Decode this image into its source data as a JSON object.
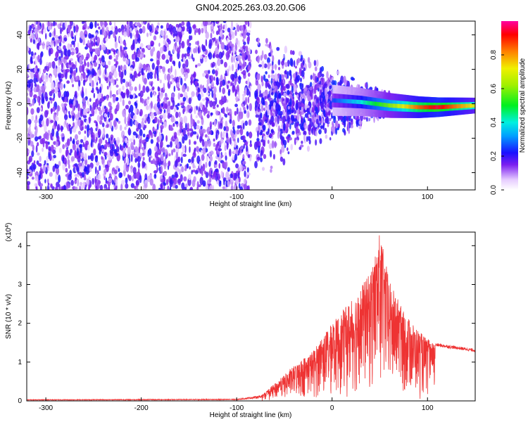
{
  "chart_data": [
    {
      "type": "heatmap",
      "title": "GN04.2025.263.03.20.G06",
      "xlabel": "Height of straight line (km)",
      "ylabel": "Frequency (Hz)",
      "xlim": [
        -320,
        150
      ],
      "ylim": [
        -50,
        48
      ],
      "xticks": [
        -300,
        -200,
        -100,
        0,
        100
      ],
      "yticks": [
        -40,
        -20,
        0,
        20,
        40
      ],
      "colorbar": {
        "label": "Normalized spectral amplitude",
        "range": [
          0.0,
          1.0
        ],
        "ticks": [
          0.0,
          0.2,
          0.4,
          0.6,
          0.8
        ]
      },
      "ridge": {
        "description_points": [
          {
            "x": 0,
            "freq": 2,
            "amp": 0.25
          },
          {
            "x": 30,
            "freq": 1,
            "amp": 0.4
          },
          {
            "x": 60,
            "freq": -1,
            "amp": 0.6
          },
          {
            "x": 90,
            "freq": -2,
            "amp": 0.85
          },
          {
            "x": 110,
            "freq": -2,
            "amp": 0.95
          },
          {
            "x": 150,
            "freq": -1,
            "amp": 0.7
          }
        ]
      }
    },
    {
      "type": "line",
      "xlabel": "Height of straight line (km)",
      "ylabel": "SNR (10 * v/v)",
      "exponent_label": "(x10",
      "exponent_sup": "4",
      "exponent_close": ")",
      "xlim": [
        -320,
        150
      ],
      "ylim": [
        0,
        4.35
      ],
      "xticks": [
        -300,
        -200,
        -100,
        0,
        100
      ],
      "yticks": [
        0,
        1,
        2,
        3,
        4
      ],
      "color": "#ee3333",
      "series": [
        {
          "name": "SNR",
          "envelope": [
            {
              "x": -320,
              "y": 0.03
            },
            {
              "x": -100,
              "y": 0.04
            },
            {
              "x": -75,
              "y": 0.12
            },
            {
              "x": -60,
              "y": 0.45
            },
            {
              "x": -40,
              "y": 0.9
            },
            {
              "x": -20,
              "y": 1.3
            },
            {
              "x": 0,
              "y": 2.0
            },
            {
              "x": 20,
              "y": 2.6
            },
            {
              "x": 40,
              "y": 3.3
            },
            {
              "x": 50,
              "y": 4.35
            },
            {
              "x": 60,
              "y": 3.1
            },
            {
              "x": 75,
              "y": 2.3
            },
            {
              "x": 95,
              "y": 1.7
            },
            {
              "x": 108,
              "y": 1.45
            },
            {
              "x": 150,
              "y": 1.3
            }
          ]
        }
      ]
    }
  ]
}
